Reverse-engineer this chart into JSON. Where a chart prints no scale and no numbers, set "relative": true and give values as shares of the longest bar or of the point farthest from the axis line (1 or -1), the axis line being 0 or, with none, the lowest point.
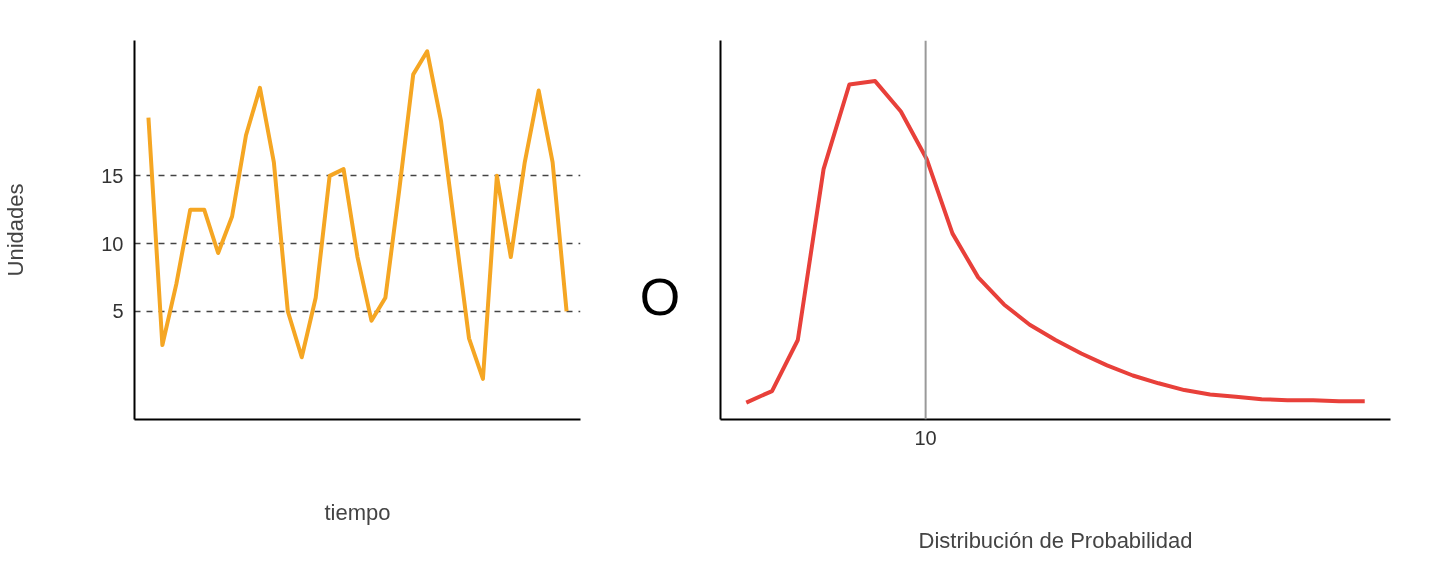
{
  "chart_data": [
    {
      "type": "line",
      "ylabel": "Unidades",
      "xlabel": "tiempo",
      "categories": [
        null,
        null,
        null,
        null,
        null,
        null,
        null,
        null,
        null,
        null,
        null,
        null,
        null,
        null,
        null,
        null,
        null,
        null,
        null,
        null,
        null,
        null,
        null,
        null,
        null,
        null,
        null,
        null,
        null,
        null,
        null
      ],
      "series": [
        {
          "color": "#f5a623",
          "values": [
            19.3,
            2.5,
            7,
            12.5,
            12.5,
            9.3,
            12,
            18,
            21.5,
            16,
            5,
            1.6,
            6,
            15,
            15.5,
            9,
            4.3,
            6,
            14,
            22.5,
            24.2,
            19,
            11,
            3,
            0,
            15,
            9,
            16,
            21.3,
            16,
            5
          ]
        }
      ],
      "ylim": [
        -3,
        25
      ],
      "yticks": [
        5,
        10,
        15
      ],
      "grid": "y",
      "line_style": "solid",
      "tick_labels": "y",
      "annotations": [
        "O"
      ]
    },
    {
      "type": "line",
      "xlabel": "Distribución de Probabilidad",
      "relative": true,
      "categories": [
        null,
        null,
        null,
        null,
        null,
        null,
        null,
        null,
        null,
        null,
        null,
        null,
        null,
        null,
        null,
        null,
        null,
        null,
        null,
        null,
        null,
        null,
        null,
        null,
        null
      ],
      "annotations": [
        "10"
      ],
      "series": [
        {
          "color": "#e8403a",
          "values": [
            0.05,
            0.084,
            0.235,
            0.74,
            0.99,
            1.0,
            0.91,
            0.77,
            0.55,
            0.42,
            0.34,
            0.28,
            0.235,
            0.195,
            0.16,
            0.13,
            0.107,
            0.087,
            0.074,
            0.067,
            0.06,
            0.057,
            0.057,
            0.054,
            0.054
          ]
        }
      ],
      "tick_labels": "x",
      "line_style": "solid"
    }
  ]
}
